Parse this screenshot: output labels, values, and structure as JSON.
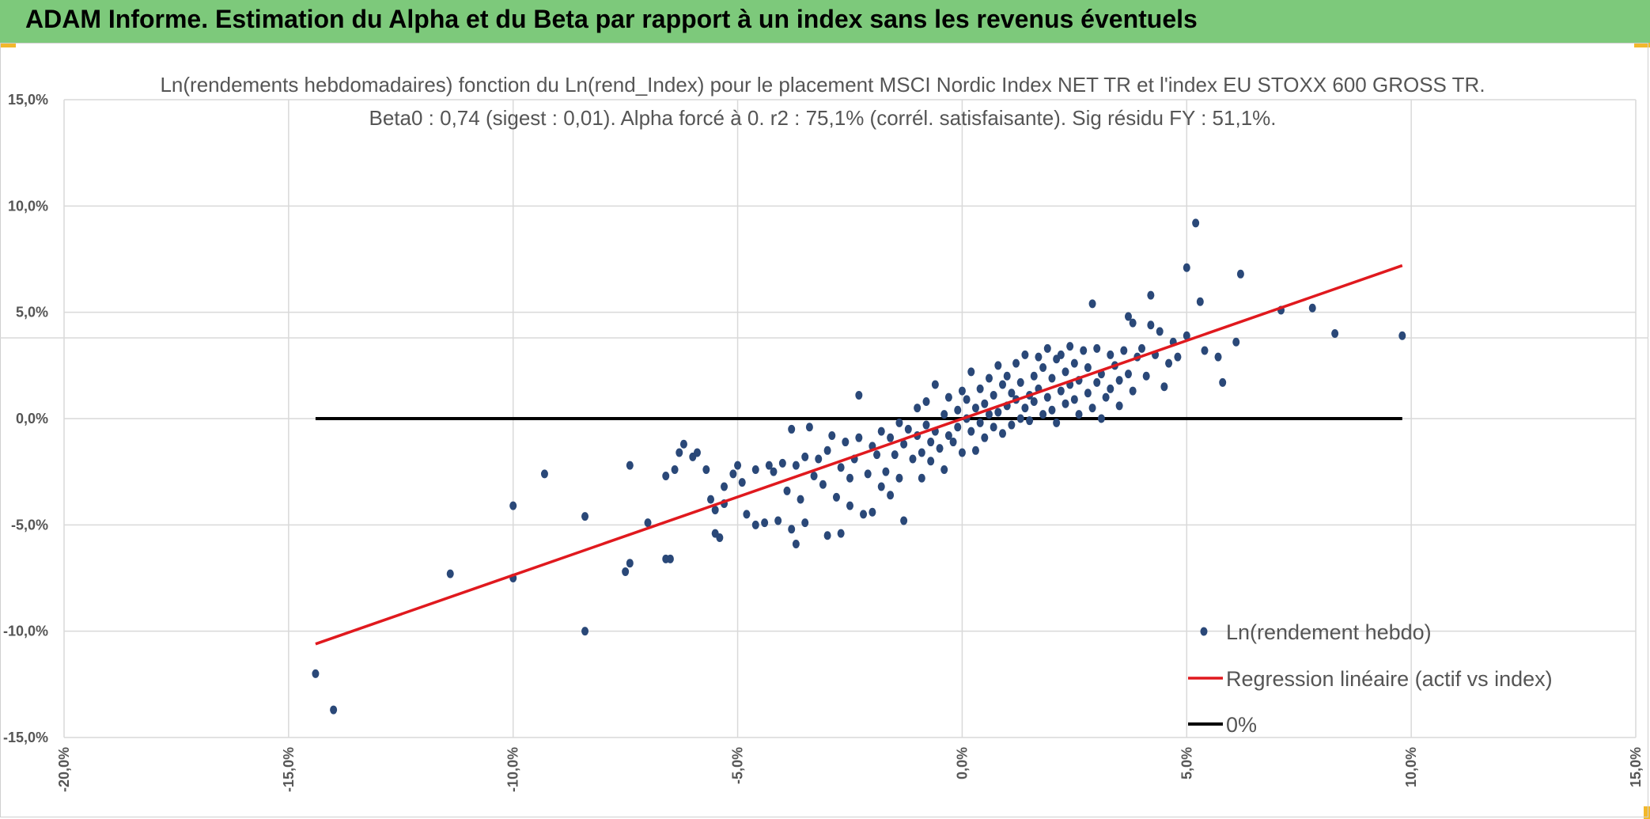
{
  "header": {
    "title": "ADAM Informe. Estimation du Alpha et du Beta par rapport à un index sans les revenus éventuels"
  },
  "colors": {
    "header_bg": "#7dc97b",
    "points": "#2a4878",
    "regression": "#e0191e",
    "zero_line": "#000000",
    "grid": "#d9d9d9"
  },
  "chart_data": {
    "type": "scatter",
    "title": "Ln(rendements hebdomadaires) fonction du Ln(rend_Index) pour le placement MSCI Nordic Index NET TR et l'index EU STOXX 600 GROSS TR.",
    "subtitle": "Beta0 : 0,74 (sigest : 0,01). Alpha forcé à 0. r2 : 75,1% (corrél. satisfaisante). Sig résidu FY : 51,1%.",
    "xlim": [
      -20,
      15
    ],
    "ylim": [
      -15,
      15
    ],
    "x_ticks": [
      "-20,0%",
      "-15,0%",
      "-10,0%",
      "-5,0%",
      "0,0%",
      "5,0%",
      "10,0%",
      "15,0%"
    ],
    "y_ticks": [
      "15,0%",
      "10,0%",
      "5,0%",
      "0,0%",
      "-5,0%",
      "-10,0%",
      "-15,0%"
    ],
    "grid": true,
    "legend_position": "bottom-right",
    "series": [
      {
        "name": "Ln(rendement hebdo)",
        "type": "scatter",
        "points": [
          [
            -14.4,
            -12.0
          ],
          [
            -14.0,
            -13.7
          ],
          [
            -11.4,
            -7.3
          ],
          [
            -10.0,
            -7.5
          ],
          [
            -10.0,
            -4.1
          ],
          [
            -9.3,
            -2.6
          ],
          [
            -8.4,
            -10.0
          ],
          [
            -8.4,
            -4.6
          ],
          [
            -7.5,
            -7.2
          ],
          [
            -7.4,
            -6.8
          ],
          [
            -7.4,
            -2.2
          ],
          [
            -7.0,
            -4.9
          ],
          [
            -6.6,
            -6.6
          ],
          [
            -6.5,
            -6.6
          ],
          [
            -6.6,
            -2.7
          ],
          [
            -6.4,
            -2.4
          ],
          [
            -6.3,
            -1.6
          ],
          [
            -6.2,
            -1.2
          ],
          [
            -6.0,
            -1.8
          ],
          [
            -5.9,
            -1.6
          ],
          [
            -5.7,
            -2.4
          ],
          [
            -5.6,
            -3.8
          ],
          [
            -5.5,
            -4.3
          ],
          [
            -5.5,
            -5.4
          ],
          [
            -5.4,
            -5.6
          ],
          [
            -5.3,
            -3.2
          ],
          [
            -5.3,
            -4.0
          ],
          [
            -5.1,
            -2.6
          ],
          [
            -5.0,
            -2.2
          ],
          [
            -4.9,
            -3.0
          ],
          [
            -4.8,
            -4.5
          ],
          [
            -4.6,
            -2.4
          ],
          [
            -4.6,
            -5.0
          ],
          [
            -4.4,
            -4.9
          ],
          [
            -4.3,
            -2.2
          ],
          [
            -4.2,
            -2.5
          ],
          [
            -4.1,
            -4.8
          ],
          [
            -4.0,
            -2.1
          ],
          [
            -3.9,
            -3.4
          ],
          [
            -3.8,
            -5.2
          ],
          [
            -3.8,
            -0.5
          ],
          [
            -3.7,
            -5.9
          ],
          [
            -3.7,
            -2.2
          ],
          [
            -3.6,
            -3.8
          ],
          [
            -3.5,
            -1.8
          ],
          [
            -3.5,
            -4.9
          ],
          [
            -3.4,
            -0.4
          ],
          [
            -3.3,
            -2.7
          ],
          [
            -3.2,
            -1.9
          ],
          [
            -3.1,
            -3.1
          ],
          [
            -3.0,
            -5.5
          ],
          [
            -3.0,
            -1.5
          ],
          [
            -2.9,
            -0.8
          ],
          [
            -2.8,
            -3.7
          ],
          [
            -2.7,
            -5.4
          ],
          [
            -2.7,
            -2.3
          ],
          [
            -2.6,
            -1.1
          ],
          [
            -2.5,
            -4.1
          ],
          [
            -2.5,
            -2.8
          ],
          [
            -2.4,
            -1.9
          ],
          [
            -2.3,
            -0.9
          ],
          [
            -2.3,
            1.1
          ],
          [
            -2.2,
            -4.5
          ],
          [
            -2.1,
            -2.6
          ],
          [
            -2.0,
            -4.4
          ],
          [
            -2.0,
            -1.3
          ],
          [
            -1.9,
            -1.7
          ],
          [
            -1.8,
            -3.2
          ],
          [
            -1.8,
            -0.6
          ],
          [
            -1.7,
            -2.5
          ],
          [
            -1.6,
            -0.9
          ],
          [
            -1.6,
            -3.6
          ],
          [
            -1.5,
            -1.7
          ],
          [
            -1.4,
            -0.2
          ],
          [
            -1.4,
            -2.8
          ],
          [
            -1.3,
            -4.8
          ],
          [
            -1.3,
            -1.2
          ],
          [
            -1.2,
            -0.5
          ],
          [
            -1.1,
            -1.9
          ],
          [
            -1.0,
            -0.8
          ],
          [
            -1.0,
            0.5
          ],
          [
            -0.9,
            -1.6
          ],
          [
            -0.9,
            -2.8
          ],
          [
            -0.8,
            -0.3
          ],
          [
            -0.8,
            0.8
          ],
          [
            -0.7,
            -1.1
          ],
          [
            -0.7,
            -2.0
          ],
          [
            -0.6,
            -0.6
          ],
          [
            -0.6,
            1.6
          ],
          [
            -0.5,
            -1.4
          ],
          [
            -0.4,
            0.2
          ],
          [
            -0.4,
            -2.4
          ],
          [
            -0.3,
            -0.8
          ],
          [
            -0.3,
            1.0
          ],
          [
            -0.2,
            -1.1
          ],
          [
            -0.1,
            0.4
          ],
          [
            -0.1,
            -0.4
          ],
          [
            0.0,
            1.3
          ],
          [
            0.0,
            -1.6
          ],
          [
            0.1,
            0.0
          ],
          [
            0.1,
            0.9
          ],
          [
            0.2,
            -0.6
          ],
          [
            0.2,
            2.2
          ],
          [
            0.3,
            0.5
          ],
          [
            0.3,
            -1.5
          ],
          [
            0.4,
            1.4
          ],
          [
            0.4,
            -0.2
          ],
          [
            0.5,
            0.7
          ],
          [
            0.5,
            -0.9
          ],
          [
            0.6,
            1.9
          ],
          [
            0.6,
            0.2
          ],
          [
            0.7,
            -0.4
          ],
          [
            0.7,
            1.1
          ],
          [
            0.8,
            2.5
          ],
          [
            0.8,
            0.3
          ],
          [
            0.9,
            -0.7
          ],
          [
            0.9,
            1.6
          ],
          [
            1.0,
            0.6
          ],
          [
            1.0,
            2.0
          ],
          [
            1.1,
            -0.3
          ],
          [
            1.1,
            1.2
          ],
          [
            1.2,
            0.9
          ],
          [
            1.2,
            2.6
          ],
          [
            1.3,
            0.0
          ],
          [
            1.3,
            1.7
          ],
          [
            1.4,
            0.5
          ],
          [
            1.4,
            3.0
          ],
          [
            1.5,
            1.1
          ],
          [
            1.5,
            -0.1
          ],
          [
            1.6,
            2.0
          ],
          [
            1.6,
            0.8
          ],
          [
            1.7,
            2.9
          ],
          [
            1.7,
            1.4
          ],
          [
            1.8,
            0.2
          ],
          [
            1.8,
            2.4
          ],
          [
            1.9,
            1.0
          ],
          [
            1.9,
            3.3
          ],
          [
            2.0,
            0.4
          ],
          [
            2.0,
            1.9
          ],
          [
            2.1,
            2.8
          ],
          [
            2.1,
            -0.2
          ],
          [
            2.2,
            1.3
          ],
          [
            2.2,
            3.0
          ],
          [
            2.3,
            0.7
          ],
          [
            2.3,
            2.2
          ],
          [
            2.4,
            1.6
          ],
          [
            2.4,
            3.4
          ],
          [
            2.5,
            0.9
          ],
          [
            2.5,
            2.6
          ],
          [
            2.6,
            0.2
          ],
          [
            2.6,
            1.8
          ],
          [
            2.7,
            3.2
          ],
          [
            2.8,
            1.2
          ],
          [
            2.8,
            2.4
          ],
          [
            2.9,
            5.4
          ],
          [
            2.9,
            0.5
          ],
          [
            3.0,
            1.7
          ],
          [
            3.0,
            3.3
          ],
          [
            3.1,
            0.0
          ],
          [
            3.1,
            2.1
          ],
          [
            3.2,
            1.0
          ],
          [
            3.3,
            3.0
          ],
          [
            3.3,
            1.4
          ],
          [
            3.4,
            2.5
          ],
          [
            3.5,
            1.8
          ],
          [
            3.5,
            0.6
          ],
          [
            3.6,
            3.2
          ],
          [
            3.7,
            2.1
          ],
          [
            3.7,
            4.8
          ],
          [
            3.8,
            1.3
          ],
          [
            3.8,
            4.5
          ],
          [
            3.9,
            2.9
          ],
          [
            4.0,
            3.3
          ],
          [
            4.1,
            2.0
          ],
          [
            4.2,
            5.8
          ],
          [
            4.2,
            4.4
          ],
          [
            4.3,
            3.0
          ],
          [
            4.4,
            4.1
          ],
          [
            4.5,
            1.5
          ],
          [
            4.6,
            2.6
          ],
          [
            4.7,
            3.6
          ],
          [
            4.8,
            2.9
          ],
          [
            5.0,
            7.1
          ],
          [
            5.0,
            3.9
          ],
          [
            5.2,
            9.2
          ],
          [
            5.3,
            5.5
          ],
          [
            5.4,
            3.2
          ],
          [
            5.7,
            2.9
          ],
          [
            5.8,
            1.7
          ],
          [
            6.1,
            3.6
          ],
          [
            6.2,
            6.8
          ],
          [
            7.1,
            5.1
          ],
          [
            7.8,
            5.2
          ],
          [
            8.3,
            4.0
          ],
          [
            9.8,
            3.9
          ]
        ]
      },
      {
        "name": "Regression linéaire (actif vs index)",
        "type": "line",
        "points": [
          [
            -14.4,
            -10.6
          ],
          [
            9.8,
            7.2
          ]
        ]
      },
      {
        "name": "0%",
        "type": "line",
        "points": [
          [
            -14.4,
            0.0
          ],
          [
            9.8,
            0.0
          ]
        ]
      }
    ]
  }
}
